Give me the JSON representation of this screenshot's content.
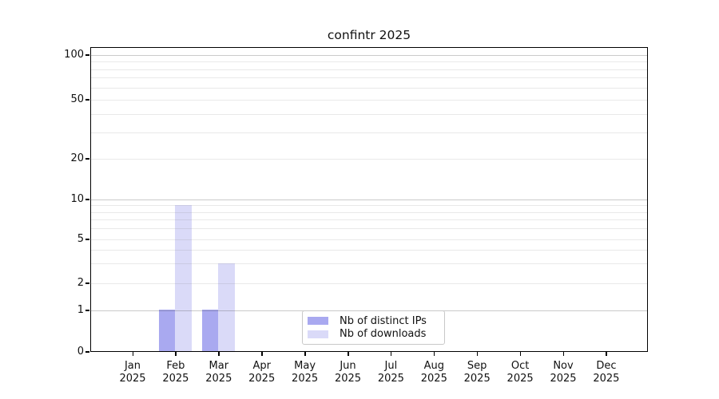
{
  "page": {
    "background": "#ffffff"
  },
  "chart_data": {
    "type": "bar",
    "title": "confintr 2025",
    "x": {
      "months": [
        "Jan",
        "Feb",
        "Mar",
        "Apr",
        "May",
        "Jun",
        "Jul",
        "Aug",
        "Sep",
        "Oct",
        "Nov",
        "Dec"
      ],
      "year": "2025"
    },
    "series": [
      {
        "name": "Nb of distinct IPs",
        "color": "#a9a9f0",
        "values": [
          0,
          1,
          1,
          0,
          0,
          0,
          0,
          0,
          0,
          0,
          0,
          0
        ]
      },
      {
        "name": "Nb of downloads",
        "color": "#dadaf8",
        "values": [
          0,
          9,
          3,
          0,
          0,
          0,
          0,
          0,
          0,
          0,
          0,
          0
        ]
      }
    ],
    "y_axis": {
      "tick_values": [
        0,
        1,
        2,
        5,
        10,
        20,
        50,
        100
      ],
      "scale": "log-like (linear 0-1, logarithmic above 1)",
      "range": [
        0,
        110
      ]
    },
    "gridlines": {
      "minor_values": [
        2,
        3,
        4,
        5,
        6,
        7,
        8,
        9,
        20,
        30,
        40,
        50,
        60,
        70,
        80,
        90
      ],
      "major_values": [
        1,
        10,
        100
      ],
      "minor_color": "#ededed",
      "major_color": "#c9c9c9"
    },
    "legend": {
      "position": "bottom-center",
      "border_color": "#c8c8c8"
    }
  }
}
